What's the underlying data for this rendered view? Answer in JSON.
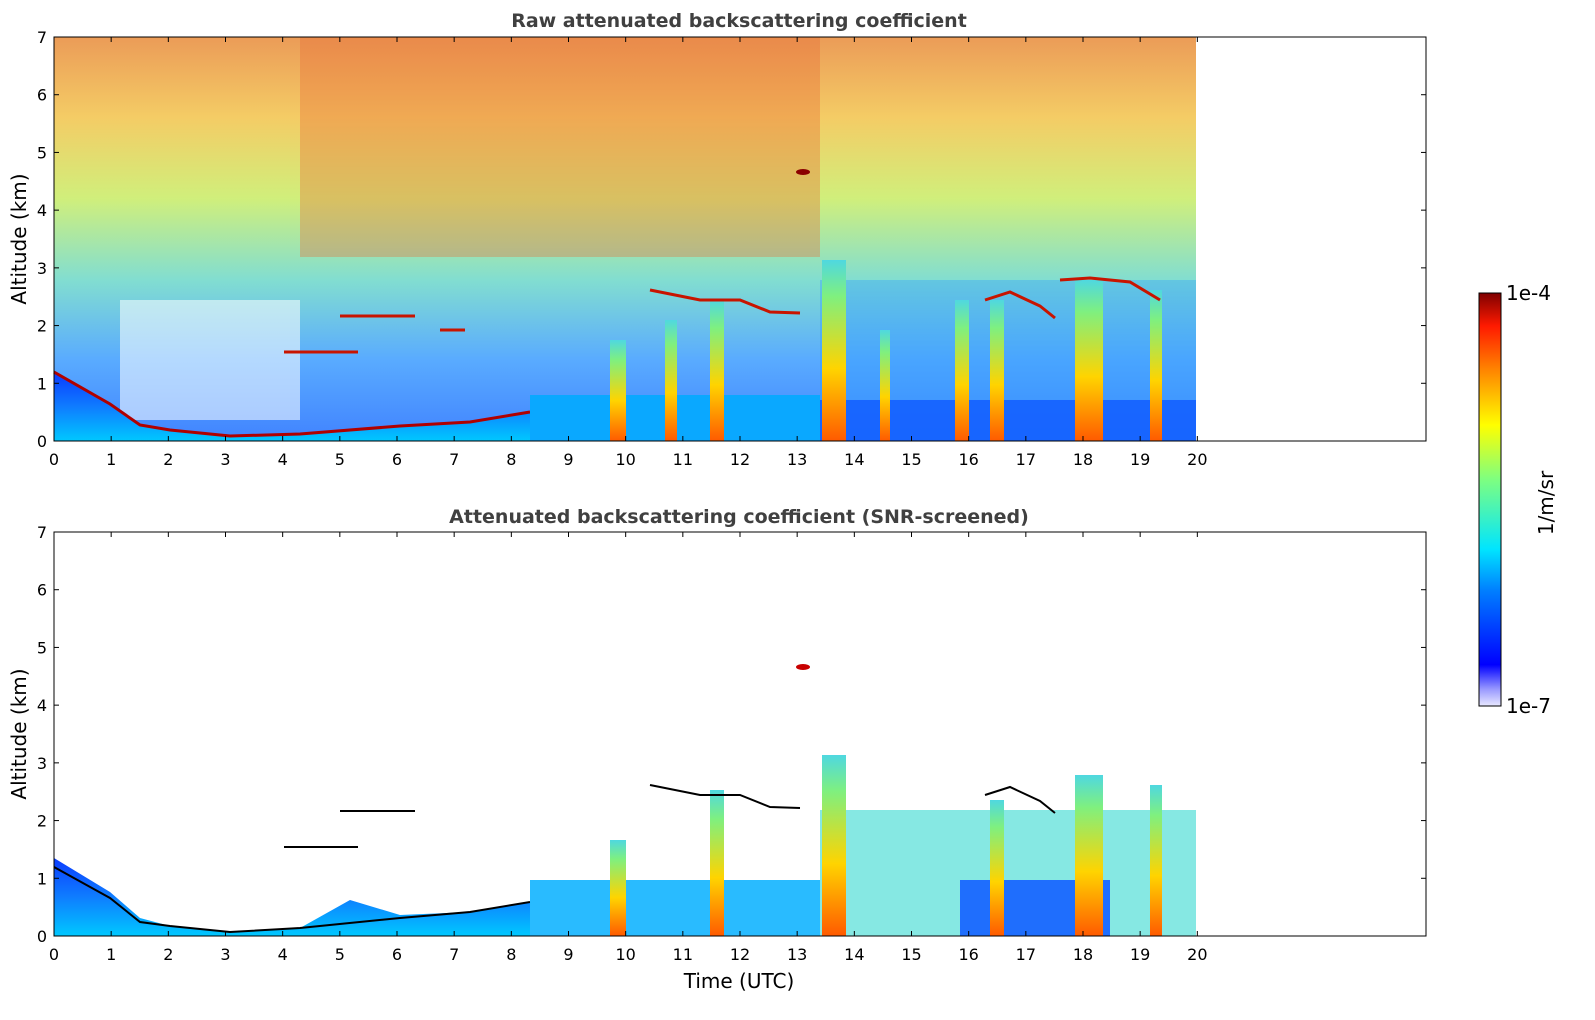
{
  "chart_data": [
    {
      "type": "heatmap",
      "title": "Raw attenuated backscattering coefficient",
      "xlabel": "",
      "ylabel": "Altitude (km)",
      "xlim": [
        0,
        24
      ],
      "ylim": [
        0,
        7
      ],
      "x_ticks": [
        "0",
        "1",
        "2",
        "3",
        "4",
        "5",
        "6",
        "7",
        "8",
        "9",
        "10",
        "11",
        "12",
        "13",
        "14",
        "15",
        "16",
        "17",
        "18",
        "19",
        "20"
      ],
      "y_ticks": [
        "0",
        "1",
        "2",
        "3",
        "4",
        "5",
        "6",
        "7"
      ],
      "data_extent_hours": [
        0,
        20
      ],
      "grid": false,
      "features": {
        "boundary_layer_top_km": [
          {
            "t": 0.0,
            "z": 1.2
          },
          {
            "t": 1.0,
            "z": 0.55
          },
          {
            "t": 1.6,
            "z": 0.2
          },
          {
            "t": 2.5,
            "z": 0.22
          },
          {
            "t": 3.5,
            "z": 0.1
          },
          {
            "t": 5.0,
            "z": 0.22
          },
          {
            "t": 6.5,
            "z": 0.3
          },
          {
            "t": 8.2,
            "z": 0.5
          }
        ],
        "elevated_layers_km": [
          {
            "t0": 4.0,
            "t1": 5.3,
            "z": 1.55
          },
          {
            "t0": 5.0,
            "t1": 6.3,
            "z": 2.1
          },
          {
            "t0": 6.8,
            "t1": 7.2,
            "z": 1.9
          },
          {
            "t0": 10.4,
            "t1": 12.9,
            "z": 2.4
          },
          {
            "t0": 16.3,
            "t1": 17.5,
            "z": 2.4
          },
          {
            "t0": 17.9,
            "t1": 19.3,
            "z": 2.7
          }
        ],
        "high_cloud_km": {
          "t": 13.1,
          "z": 4.65
        }
      }
    },
    {
      "type": "heatmap",
      "title": "Attenuated backscattering coefficient (SNR-screened)",
      "xlabel": "Time (UTC)",
      "ylabel": "Altitude (km)",
      "xlim": [
        0,
        24
      ],
      "ylim": [
        0,
        7
      ],
      "x_ticks": [
        "0",
        "1",
        "2",
        "3",
        "4",
        "5",
        "6",
        "7",
        "8",
        "9",
        "10",
        "11",
        "12",
        "13",
        "14",
        "15",
        "16",
        "17",
        "18",
        "19",
        "20"
      ],
      "y_ticks": [
        "0",
        "1",
        "2",
        "3",
        "4",
        "5",
        "6",
        "7"
      ],
      "data_extent_hours": [
        0,
        20
      ],
      "grid": false
    }
  ],
  "colorbar": {
    "label": "1/m/sr",
    "min_label": "1e-7",
    "max_label": "1e-4",
    "scale": "log",
    "colormap": "jet"
  },
  "colors": {
    "title_text": "#404040",
    "axis": "#000000",
    "jet_low": "#00007f",
    "jet_high": "#7f0000"
  }
}
